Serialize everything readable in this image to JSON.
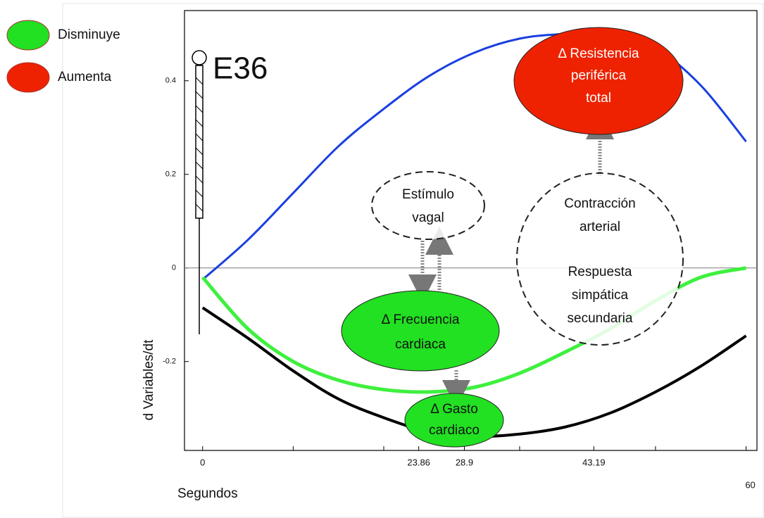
{
  "chart_data": {
    "type": "line",
    "x": [
      0,
      5,
      10,
      15,
      20,
      25,
      30,
      35,
      40,
      45,
      50,
      55,
      60
    ],
    "series": [
      {
        "color": "#1a3fe0",
        "values": [
          -0.025,
          0.06,
          0.16,
          0.26,
          0.34,
          0.41,
          0.46,
          0.49,
          0.5,
          0.5,
          0.47,
          0.39,
          0.27
        ]
      },
      {
        "color": "#3ef03e",
        "values": [
          -0.02,
          -0.13,
          -0.2,
          -0.24,
          -0.26,
          -0.265,
          -0.255,
          -0.225,
          -0.18,
          -0.13,
          -0.07,
          -0.02,
          0.0
        ]
      },
      {
        "color": "#000000",
        "values": [
          -0.085,
          -0.15,
          -0.22,
          -0.28,
          -0.32,
          -0.35,
          -0.36,
          -0.355,
          -0.34,
          -0.31,
          -0.265,
          -0.21,
          -0.145
        ]
      }
    ],
    "xlim": [
      -2,
      61.2
    ],
    "ylim": [
      -0.39,
      0.55
    ],
    "xticks": [
      0,
      23.86,
      28.9,
      43.19,
      60
    ],
    "xminorticks": [
      10,
      20,
      35,
      50
    ],
    "yticks": [
      -0.2,
      0,
      0.2,
      0.4
    ],
    "xlabel": "Segundos",
    "ylabel": "d Variables/dt",
    "marker_label": "E36",
    "legend": [
      {
        "label": "Disminuye",
        "color": "#22e022"
      },
      {
        "label": "Aumenta",
        "color": "#ee2200"
      }
    ],
    "annotations": [
      {
        "lines": [
          "Δ Resistencia",
          "periférica",
          "total"
        ],
        "color": "#ee2200"
      },
      {
        "lines": [
          "Estímulo",
          "vagal"
        ]
      },
      {
        "lines": [
          "Contracción",
          "arterial",
          "Respuesta",
          "simpática",
          "secundaria"
        ]
      },
      {
        "lines": [
          "Δ Frecuencia",
          "cardiaca"
        ],
        "color": "#22e022"
      },
      {
        "lines": [
          "Δ  Gasto",
          "cardiaco"
        ],
        "color": "#22e022"
      }
    ]
  }
}
